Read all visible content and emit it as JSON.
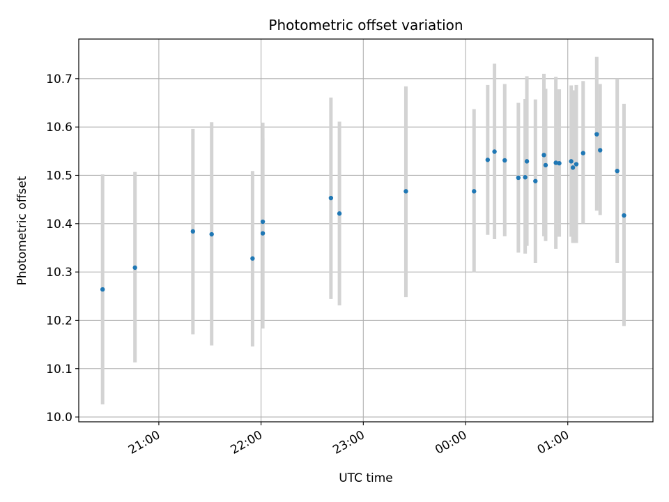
{
  "chart_data": {
    "type": "scatter",
    "title": "Photometric offset variation",
    "xlabel": "UTC time",
    "ylabel": "Photometric offset",
    "grid": true,
    "xlim_hours": [
      20.2167,
      25.8333
    ],
    "ylim": [
      9.99,
      10.782
    ],
    "x_ticks": [
      {
        "hour": 21,
        "label": "21:00"
      },
      {
        "hour": 22,
        "label": "22:00"
      },
      {
        "hour": 23,
        "label": "23:00"
      },
      {
        "hour": 24,
        "label": "00:00"
      },
      {
        "hour": 25,
        "label": "01:00"
      }
    ],
    "y_ticks": [
      10.0,
      10.1,
      10.2,
      10.3,
      10.4,
      10.5,
      10.6,
      10.7
    ],
    "y_tick_labels": [
      "10.0",
      "10.1",
      "10.2",
      "10.3",
      "10.4",
      "10.5",
      "10.6",
      "10.7"
    ],
    "point_color": "#1f77b4",
    "errorbar_color": "#d3d3d3",
    "points": [
      {
        "t": "20:27",
        "y": 10.264,
        "lo": 10.026,
        "hi": 10.502
      },
      {
        "t": "20:46",
        "y": 10.309,
        "lo": 10.113,
        "hi": 10.507
      },
      {
        "t": "21:20",
        "y": 10.384,
        "lo": 10.171,
        "hi": 10.596
      },
      {
        "t": "21:31",
        "y": 10.378,
        "lo": 10.148,
        "hi": 10.61
      },
      {
        "t": "21:55",
        "y": 10.328,
        "lo": 10.146,
        "hi": 10.509
      },
      {
        "t": "22:01",
        "y": 10.404,
        "lo": 10.2,
        "hi": 10.609
      },
      {
        "t": "22:01",
        "y": 10.38,
        "lo": 10.183,
        "hi": 10.577
      },
      {
        "t": "22:41",
        "y": 10.453,
        "lo": 10.244,
        "hi": 10.661
      },
      {
        "t": "22:46",
        "y": 10.421,
        "lo": 10.231,
        "hi": 10.611
      },
      {
        "t": "23:25",
        "y": 10.467,
        "lo": 10.248,
        "hi": 10.684
      },
      {
        "t": "00:05",
        "y": 10.467,
        "lo": 10.299,
        "hi": 10.637
      },
      {
        "t": "00:13",
        "y": 10.532,
        "lo": 10.377,
        "hi": 10.687
      },
      {
        "t": "00:17",
        "y": 10.549,
        "lo": 10.368,
        "hi": 10.731
      },
      {
        "t": "00:23",
        "y": 10.531,
        "lo": 10.374,
        "hi": 10.689
      },
      {
        "t": "00:31",
        "y": 10.495,
        "lo": 10.34,
        "hi": 10.65
      },
      {
        "t": "00:35",
        "y": 10.496,
        "lo": 10.338,
        "hi": 10.658
      },
      {
        "t": "00:36",
        "y": 10.529,
        "lo": 10.354,
        "hi": 10.705
      },
      {
        "t": "00:41",
        "y": 10.488,
        "lo": 10.319,
        "hi": 10.657
      },
      {
        "t": "00:46",
        "y": 10.542,
        "lo": 10.374,
        "hi": 10.71
      },
      {
        "t": "00:47",
        "y": 10.521,
        "lo": 10.364,
        "hi": 10.679
      },
      {
        "t": "00:53",
        "y": 10.526,
        "lo": 10.348,
        "hi": 10.704
      },
      {
        "t": "00:55",
        "y": 10.525,
        "lo": 10.373,
        "hi": 10.678
      },
      {
        "t": "01:02",
        "y": 10.529,
        "lo": 10.373,
        "hi": 10.686
      },
      {
        "t": "01:03",
        "y": 10.516,
        "lo": 10.36,
        "hi": 10.676
      },
      {
        "t": "01:05",
        "y": 10.523,
        "lo": 10.36,
        "hi": 10.687
      },
      {
        "t": "01:09",
        "y": 10.546,
        "lo": 10.4,
        "hi": 10.695
      },
      {
        "t": "01:17",
        "y": 10.585,
        "lo": 10.427,
        "hi": 10.745
      },
      {
        "t": "01:19",
        "y": 10.552,
        "lo": 10.418,
        "hi": 10.689
      },
      {
        "t": "01:29",
        "y": 10.509,
        "lo": 10.319,
        "hi": 10.7
      },
      {
        "t": "01:33",
        "y": 10.417,
        "lo": 10.188,
        "hi": 10.648
      }
    ]
  }
}
